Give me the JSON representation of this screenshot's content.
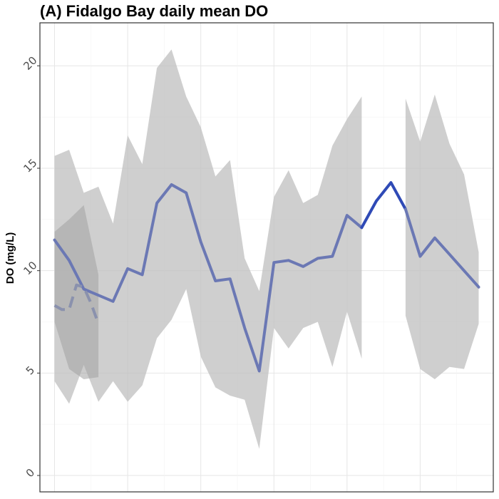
{
  "chart_data": {
    "type": "line",
    "title": "(A) Fidalgo Bay daily mean DO",
    "xlabel": "",
    "ylabel": "DO (mg/L)",
    "ylim": [
      -0.8,
      22.1
    ],
    "xlim": [
      -1,
      30
    ],
    "yticks": [
      0,
      5,
      10,
      15,
      20
    ],
    "grid": true,
    "ribbon_color": "#bfbfbf",
    "ribbon2_color": "#a3a3a3",
    "line_color": "#6b78b4",
    "highlight_color": "#2f4ab6",
    "dash_color": "#8a91ad",
    "ribbon_segments": [
      {
        "x": [
          0,
          1,
          2,
          3,
          4,
          5,
          6,
          7,
          8,
          9,
          10,
          11,
          12,
          13,
          14,
          15,
          16,
          17,
          18,
          19,
          20
        ],
        "upper": [
          15.6,
          15.9,
          13.8,
          14.1,
          12.3,
          16.6,
          15.2,
          19.9,
          20.8,
          18.5,
          17.0,
          14.6,
          15.4,
          10.6,
          9.0,
          13.6,
          14.9,
          13.3,
          13.7,
          16.1,
          17.4
        ],
        "lower": [
          4.6,
          3.5,
          5.4,
          3.6,
          4.6,
          3.6,
          4.4,
          6.7,
          7.6,
          9.1,
          5.8,
          4.3,
          3.9,
          3.7,
          1.3,
          7.2,
          6.2,
          7.2,
          7.5,
          5.3,
          8.0
        ]
      },
      {
        "x": [
          20,
          21
        ],
        "upper": [
          17.4,
          18.5
        ],
        "lower": [
          8.0,
          5.7
        ]
      },
      {
        "x": [
          24,
          25,
          26,
          27,
          28,
          29
        ],
        "upper": [
          18.4,
          16.3,
          18.6,
          16.2,
          14.7,
          10.9
        ],
        "lower": [
          7.8,
          5.2,
          4.7,
          5.3,
          5.2,
          7.4
        ]
      }
    ],
    "ribbon2": {
      "x": [
        0,
        1,
        2,
        3
      ],
      "upper": [
        11.9,
        12.5,
        13.2,
        9.8
      ],
      "lower": [
        7.5,
        5.2,
        4.7,
        4.8
      ]
    },
    "series": [
      {
        "x": [
          0,
          1,
          2,
          3,
          4,
          5,
          6,
          7,
          8,
          9,
          10,
          11,
          12,
          13,
          14,
          15,
          16,
          17,
          18,
          19,
          20,
          21
        ],
        "y": [
          11.5,
          10.5,
          9.1,
          8.8,
          8.5,
          10.1,
          9.8,
          13.3,
          14.2,
          13.8,
          11.4,
          9.5,
          9.6,
          7.2,
          5.1,
          10.4,
          10.5,
          10.2,
          10.6,
          10.7,
          12.7,
          12.1
        ]
      },
      {
        "x": [
          21,
          22,
          23,
          24
        ],
        "y": [
          12.1,
          13.4,
          14.3,
          13.0
        ]
      },
      {
        "x": [
          24,
          25,
          26,
          27,
          28,
          29
        ],
        "y": [
          13.0,
          10.7,
          11.6,
          10.8,
          10.0,
          9.2
        ]
      },
      {
        "x": [
          0,
          0.5,
          1,
          1.5,
          2,
          2.5,
          3
        ],
        "y": [
          8.3,
          8.1,
          8.1,
          9.3,
          9.2,
          8.4,
          7.4
        ]
      }
    ]
  }
}
